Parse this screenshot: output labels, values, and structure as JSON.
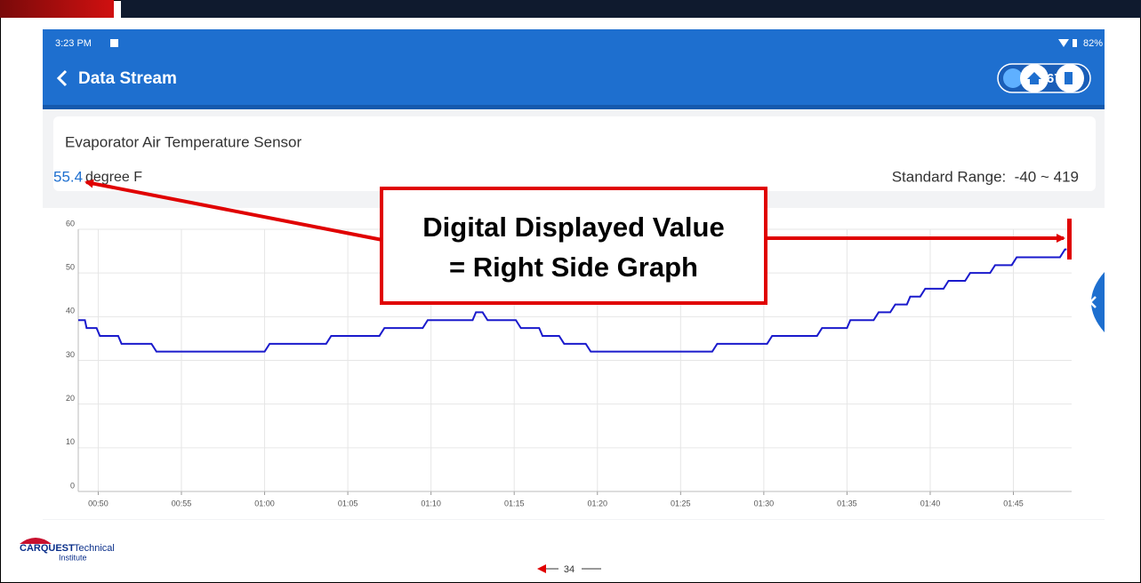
{
  "status_bar": {
    "time": "3:23 PM",
    "battery": "82%"
  },
  "header": {
    "title": "Data Stream",
    "voltage": "14.67V"
  },
  "sensor": {
    "name": "Evaporator Air Temperature Sensor",
    "value": "55.4",
    "unit": "degree F",
    "range": "Standard Range:  -40 ~ 419"
  },
  "chart_data": {
    "type": "line",
    "color": "#1a1acc",
    "grid": true,
    "x": [
      48.8,
      49.2,
      49.3,
      49.9,
      50.1,
      51.2,
      51.4,
      53.2,
      53.5,
      60.0,
      60.3,
      63.7,
      64.0,
      66.9,
      67.2,
      69.5,
      69.8,
      72.5,
      72.7,
      73.1,
      73.4,
      75.1,
      75.4,
      76.5,
      76.7,
      77.7,
      78.0,
      79.3,
      79.6,
      86.9,
      87.2,
      90.2,
      90.5,
      93.2,
      93.5,
      95.0,
      95.2,
      96.6,
      96.9,
      97.6,
      97.9,
      98.6,
      98.8,
      99.4,
      99.7,
      100.8,
      101.1,
      102.1,
      102.4,
      103.6,
      103.9,
      104.9,
      105.2,
      107.8,
      108.1,
      108.2
    ],
    "values": [
      39.2,
      39.2,
      37.4,
      37.4,
      35.6,
      35.6,
      33.8,
      33.8,
      32,
      32,
      33.8,
      33.8,
      35.6,
      35.6,
      37.4,
      37.4,
      39.2,
      39.2,
      41,
      41,
      39.2,
      39.2,
      37.4,
      37.4,
      35.6,
      35.6,
      33.8,
      33.8,
      32,
      32,
      33.8,
      33.8,
      35.6,
      35.6,
      37.4,
      37.4,
      39.2,
      39.2,
      41,
      41,
      42.8,
      42.8,
      44.6,
      44.6,
      46.4,
      46.4,
      48.2,
      48.2,
      50,
      50,
      51.8,
      51.8,
      53.6,
      53.6,
      55.4,
      55.4
    ],
    "xlim": [
      48.8,
      108.5
    ],
    "xticks": [
      {
        "value": 50,
        "label": "00:50"
      },
      {
        "value": 55,
        "label": "00:55"
      },
      {
        "value": 60,
        "label": "01:00"
      },
      {
        "value": 65,
        "label": "01:05"
      },
      {
        "value": 70,
        "label": "01:10"
      },
      {
        "value": 75,
        "label": "01:15"
      },
      {
        "value": 80,
        "label": "01:20"
      },
      {
        "value": 85,
        "label": "01:25"
      },
      {
        "value": 90,
        "label": "01:30"
      },
      {
        "value": 95,
        "label": "01:35"
      },
      {
        "value": 100,
        "label": "01:40"
      },
      {
        "value": 105,
        "label": "01:45"
      }
    ],
    "ylim": [
      0,
      60
    ],
    "yticks": [
      0,
      10,
      20,
      30,
      40,
      50,
      60
    ]
  },
  "annotation": {
    "line1": "Digital Displayed Value",
    "line2": "= Right Side Graph"
  },
  "footer": {
    "logo_brand": "CARQUEST",
    "logo_rest": "Technical",
    "logo_sub": "Institute",
    "page": "34"
  }
}
